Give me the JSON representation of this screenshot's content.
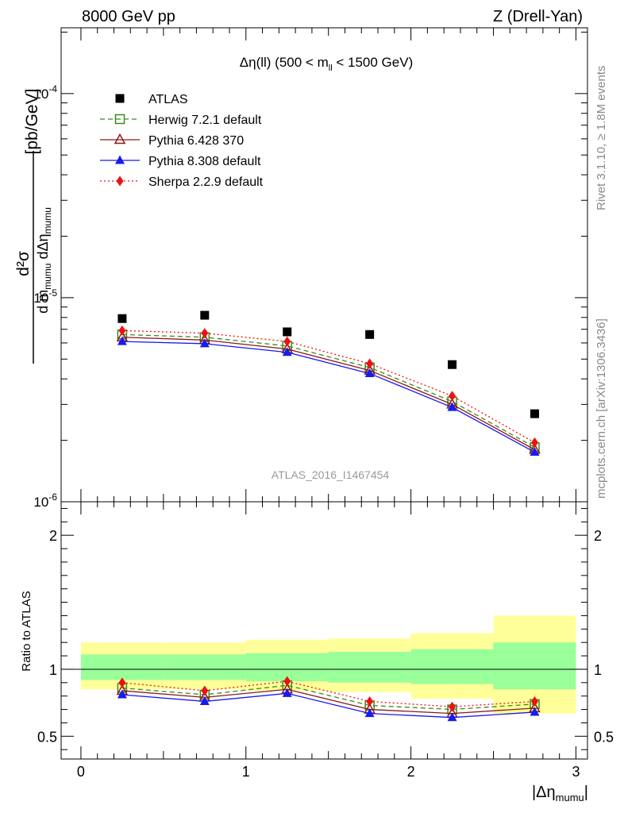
{
  "header": {
    "left": "8000 GeV pp",
    "right": "Z (Drell-Yan)"
  },
  "plot_title": "Δη(ll) (500 < m_ll < 1500 GeV)",
  "side_labels": {
    "rivet": "Rivet 3.1.10, ≥ 1.8M events",
    "mcplots": "mcplots.cern.ch [arXiv:1306.3436]"
  },
  "analysis_id": "ATLAS_2016_I1467454",
  "legend": [
    {
      "name": "ATLAS",
      "color": "#000000",
      "marker": "square-filled"
    },
    {
      "name": "Herwig 7.2.1 default",
      "color": "#3a8a1e",
      "marker": "square-open",
      "dash": "6,4"
    },
    {
      "name": "Pythia 6.428 370",
      "color": "#8b1a1a",
      "marker": "triangle-open",
      "dash": ""
    },
    {
      "name": "Pythia 8.308 default",
      "color": "#1a1aee",
      "marker": "triangle-filled",
      "dash": ""
    },
    {
      "name": "Sherpa 2.2.9 default",
      "color": "#ee1111",
      "marker": "diamond-filled",
      "dash": "2,3"
    }
  ],
  "chart_data": [
    {
      "type": "line",
      "panel": "main",
      "yscale": "log",
      "ylabel": "d²σ / d m_mumu dΔη_mumu [pb/GeV]",
      "xlim": [
        -0.12,
        3.07
      ],
      "ylim": [
        1e-06,
        0.00021
      ],
      "y_ticks": [
        "10^-6",
        "10^-5",
        "10^-4"
      ],
      "x": [
        0.25,
        0.75,
        1.25,
        1.75,
        2.25,
        2.75
      ],
      "x_edges": [
        0,
        0.5,
        1.0,
        1.5,
        2.0,
        2.5,
        3.0
      ],
      "series": [
        {
          "name": "ATLAS",
          "values": [
            7.9e-06,
            8.2e-06,
            6.8e-06,
            6.6e-06,
            4.7e-06,
            2.7e-06
          ]
        },
        {
          "name": "Herwig 7.2.1 default",
          "values": [
            6.6e-06,
            6.4e-06,
            5.8e-06,
            4.55e-06,
            3.1e-06,
            1.85e-06
          ]
        },
        {
          "name": "Pythia 6.428 370",
          "values": [
            6.4e-06,
            6.2e-06,
            5.6e-06,
            4.4e-06,
            3e-06,
            1.8e-06
          ]
        },
        {
          "name": "Pythia 8.308 default",
          "values": [
            6.1e-06,
            5.95e-06,
            5.4e-06,
            4.25e-06,
            2.9e-06,
            1.75e-06
          ]
        },
        {
          "name": "Sherpa 2.2.9 default",
          "values": [
            6.9e-06,
            6.7e-06,
            6.1e-06,
            4.75e-06,
            3.3e-06,
            1.95e-06
          ]
        }
      ]
    },
    {
      "type": "line",
      "panel": "ratio",
      "ylabel": "Ratio to ATLAS",
      "xlabel": "|Δη_mumu|",
      "xlim": [
        -0.12,
        3.07
      ],
      "ylim": [
        0.33,
        2.25
      ],
      "y_ticks": [
        0.5,
        1,
        2
      ],
      "x_ticks": [
        0,
        1,
        2,
        3
      ],
      "x": [
        0.25,
        0.75,
        1.25,
        1.75,
        2.25,
        2.75
      ],
      "x_edges": [
        0,
        0.5,
        1.0,
        1.5,
        2.0,
        2.5,
        3.0
      ],
      "band_stat": [
        [
          0.92,
          1.11
        ],
        [
          0.92,
          1.11
        ],
        [
          0.91,
          1.12
        ],
        [
          0.9,
          1.13
        ],
        [
          0.89,
          1.15
        ],
        [
          0.85,
          1.2
        ]
      ],
      "band_total": [
        [
          0.85,
          1.2
        ],
        [
          0.85,
          1.2
        ],
        [
          0.84,
          1.22
        ],
        [
          0.83,
          1.23
        ],
        [
          0.78,
          1.27
        ],
        [
          0.67,
          1.4
        ]
      ],
      "series": [
        {
          "name": "Herwig 7.2.1 default",
          "values": [
            0.86,
            0.81,
            0.88,
            0.73,
            0.7,
            0.74
          ]
        },
        {
          "name": "Pythia 6.428 370",
          "values": [
            0.84,
            0.79,
            0.85,
            0.7,
            0.67,
            0.71
          ]
        },
        {
          "name": "Pythia 8.308 default",
          "values": [
            0.81,
            0.76,
            0.82,
            0.67,
            0.64,
            0.68
          ]
        },
        {
          "name": "Sherpa 2.2.9 default",
          "values": [
            0.9,
            0.84,
            0.91,
            0.76,
            0.72,
            0.76
          ]
        }
      ]
    }
  ]
}
